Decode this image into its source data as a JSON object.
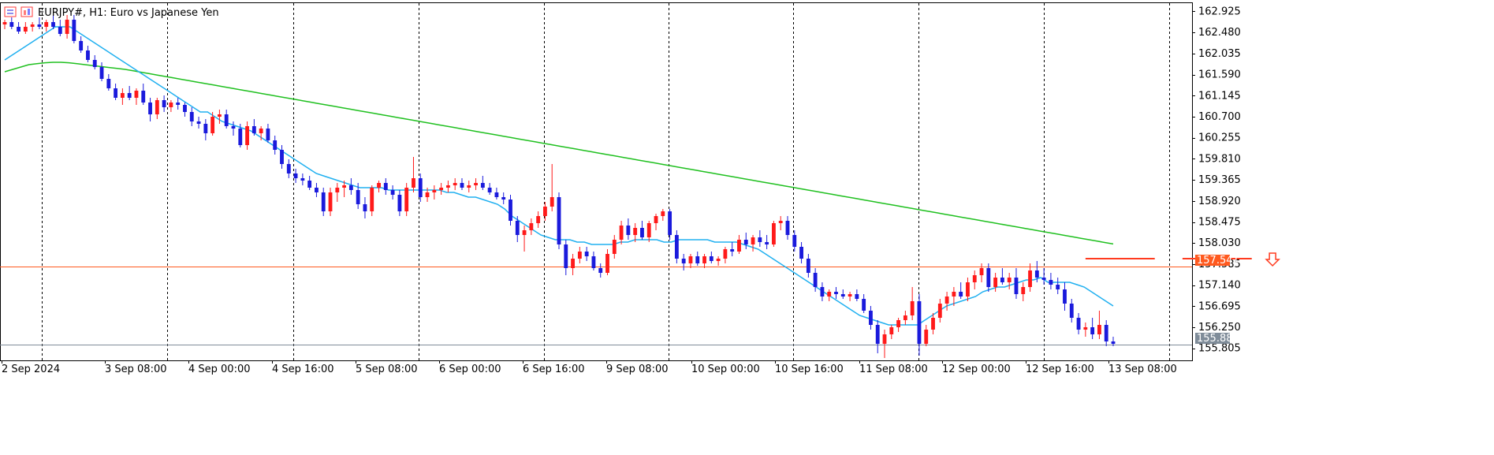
{
  "header": {
    "symbol_title": "EURJPY#, H1:  Euro vs Japanese Yen"
  },
  "chart_data": {
    "type": "candlestick",
    "timeframe": "H1",
    "ylim": [
      155.55,
      163.1
    ],
    "y_ticks": [
      "162.925",
      "162.480",
      "162.035",
      "161.590",
      "161.145",
      "160.700",
      "160.255",
      "159.810",
      "159.365",
      "158.920",
      "158.475",
      "158.030",
      "157.585",
      "157.140",
      "156.695",
      "156.250",
      "155.805"
    ],
    "x_ticks": [
      "2 Sep 2024",
      "3 Sep 08:00",
      "4 Sep 00:00",
      "4 Sep 16:00",
      "5 Sep 08:00",
      "6 Sep 00:00",
      "6 Sep 16:00",
      "9 Sep 08:00",
      "10 Sep 00:00",
      "10 Sep 16:00",
      "11 Sep 08:00",
      "12 Sep 00:00",
      "12 Sep 16:00",
      "13 Sep 08:00"
    ],
    "horizontal_lines": [
      {
        "name": "resistance",
        "value": 157.541,
        "label": "157.541",
        "color": "#ff5a1f"
      },
      {
        "name": "bid",
        "value": 155.882,
        "label": "155.882",
        "color": "#7f8c99"
      }
    ],
    "pattern_marks": [
      {
        "value": 157.6,
        "from_index": 156,
        "to_index": 166
      },
      {
        "value": 157.6,
        "from_index": 170,
        "to_index": 180
      }
    ],
    "down_arrow": {
      "index": 183,
      "value": 157.65
    },
    "colors": {
      "bull": "#ff1a1a",
      "bear": "#1a1adc",
      "ma_fast": "#20b0f0",
      "ma_slow": "#20c020",
      "grid": "#000000"
    },
    "ma_fast": [
      161.9,
      162.0,
      162.1,
      162.2,
      162.3,
      162.4,
      162.5,
      162.6,
      162.6,
      162.6,
      162.5,
      162.4,
      162.3,
      162.2,
      162.1,
      162.0,
      161.9,
      161.8,
      161.7,
      161.6,
      161.5,
      161.4,
      161.3,
      161.2,
      161.1,
      161.0,
      160.9,
      160.8,
      160.8,
      160.7,
      160.6,
      160.55,
      160.5,
      160.45,
      160.4,
      160.3,
      160.2,
      160.1,
      160.0,
      159.9,
      159.8,
      159.7,
      159.6,
      159.5,
      159.45,
      159.4,
      159.35,
      159.3,
      159.25,
      159.2,
      159.2,
      159.2,
      159.2,
      159.15,
      159.15,
      159.15,
      159.15,
      159.15,
      159.15,
      159.15,
      159.15,
      159.1,
      159.1,
      159.05,
      159.0,
      159.0,
      158.95,
      158.9,
      158.85,
      158.75,
      158.6,
      158.5,
      158.4,
      158.3,
      158.2,
      158.15,
      158.1,
      158.1,
      158.1,
      158.05,
      158.05,
      158.0,
      158.0,
      158.0,
      158.0,
      158.05,
      158.05,
      158.1,
      158.1,
      158.1,
      158.1,
      158.05,
      158.05,
      158.1,
      158.1,
      158.1,
      158.1,
      158.1,
      158.05,
      158.05,
      158.05,
      158.05,
      158.0,
      157.95,
      157.9,
      157.8,
      157.7,
      157.6,
      157.5,
      157.4,
      157.3,
      157.2,
      157.1,
      157.0,
      156.9,
      156.8,
      156.7,
      156.6,
      156.5,
      156.45,
      156.4,
      156.35,
      156.3,
      156.3,
      156.3,
      156.3,
      156.3,
      156.4,
      156.5,
      156.6,
      156.7,
      156.75,
      156.8,
      156.85,
      156.9,
      157.0,
      157.05,
      157.1,
      157.1,
      157.15,
      157.2,
      157.25,
      157.25,
      157.3,
      157.2,
      157.2,
      157.2,
      157.2,
      157.15,
      157.1,
      157.0,
      156.9,
      156.8,
      156.7
    ],
    "ma_slow": [
      161.65,
      161.7,
      161.75,
      161.8,
      161.82,
      161.84,
      161.85,
      161.85,
      161.84,
      161.82,
      161.8,
      161.78,
      161.76,
      161.74,
      161.72,
      161.7,
      161.67,
      161.64,
      161.61,
      161.58,
      161.55,
      161.52,
      161.49,
      161.46,
      161.43,
      161.4,
      161.37,
      161.34,
      161.31,
      161.28,
      161.25,
      161.22,
      161.19,
      161.16,
      161.13,
      161.1,
      161.07,
      161.04,
      161.01,
      160.98,
      160.95,
      160.92,
      160.89,
      160.86,
      160.83,
      160.8,
      160.77,
      160.74,
      160.71,
      160.68,
      160.65,
      160.62,
      160.59,
      160.56,
      160.53,
      160.5,
      160.47,
      160.44,
      160.41,
      160.38,
      160.35,
      160.32,
      160.29,
      160.26,
      160.23,
      160.2,
      160.17,
      160.14,
      160.11,
      160.08,
      160.05,
      160.02,
      159.99,
      159.96,
      159.93,
      159.9,
      159.87,
      159.84,
      159.81,
      159.78,
      159.75,
      159.72,
      159.69,
      159.66,
      159.63,
      159.6,
      159.57,
      159.54,
      159.51,
      159.48,
      159.45,
      159.42,
      159.39,
      159.36,
      159.33,
      159.3,
      159.27,
      159.24,
      159.21,
      159.18,
      159.15,
      159.12,
      159.09,
      159.06,
      159.03,
      159.0,
      158.97,
      158.94,
      158.91,
      158.88,
      158.85,
      158.82,
      158.79,
      158.76,
      158.73,
      158.7,
      158.67,
      158.64,
      158.61,
      158.58,
      158.55,
      158.52,
      158.49,
      158.46,
      158.43,
      158.4,
      158.37,
      158.34,
      158.31,
      158.28,
      158.25,
      158.22,
      158.19,
      158.16,
      158.13,
      158.1,
      158.07,
      158.04,
      158.01
    ],
    "candles": [
      [
        162.65,
        162.75,
        162.55,
        162.7
      ],
      [
        162.7,
        162.8,
        162.55,
        162.6
      ],
      [
        162.6,
        162.7,
        162.45,
        162.5
      ],
      [
        162.5,
        162.7,
        162.45,
        162.6
      ],
      [
        162.6,
        162.7,
        162.5,
        162.65
      ],
      [
        162.65,
        162.8,
        162.55,
        162.6
      ],
      [
        162.6,
        162.75,
        162.5,
        162.7
      ],
      [
        162.7,
        162.85,
        162.55,
        162.6
      ],
      [
        162.6,
        162.75,
        162.4,
        162.45
      ],
      [
        162.45,
        162.85,
        162.35,
        162.75
      ],
      [
        162.75,
        162.85,
        162.25,
        162.3
      ],
      [
        162.3,
        162.4,
        162.05,
        162.1
      ],
      [
        162.1,
        162.2,
        161.85,
        161.9
      ],
      [
        161.9,
        162.0,
        161.7,
        161.75
      ],
      [
        161.75,
        161.85,
        161.45,
        161.5
      ],
      [
        161.5,
        161.6,
        161.25,
        161.3
      ],
      [
        161.3,
        161.4,
        161.05,
        161.1
      ],
      [
        161.1,
        161.3,
        160.95,
        161.2
      ],
      [
        161.2,
        161.35,
        161.05,
        161.1
      ],
      [
        161.1,
        161.3,
        160.95,
        161.25
      ],
      [
        161.25,
        161.4,
        160.95,
        161.0
      ],
      [
        161.0,
        161.1,
        160.6,
        160.75
      ],
      [
        160.75,
        161.1,
        160.65,
        161.05
      ],
      [
        161.05,
        161.15,
        160.8,
        160.9
      ],
      [
        160.9,
        161.05,
        160.8,
        161.0
      ],
      [
        161.0,
        161.1,
        160.85,
        160.95
      ],
      [
        160.95,
        161.0,
        160.7,
        160.8
      ],
      [
        160.8,
        160.9,
        160.5,
        160.6
      ],
      [
        160.6,
        160.7,
        160.45,
        160.55
      ],
      [
        160.55,
        160.65,
        160.2,
        160.35
      ],
      [
        160.35,
        160.8,
        160.3,
        160.7
      ],
      [
        160.7,
        160.85,
        160.55,
        160.75
      ],
      [
        160.75,
        160.85,
        160.45,
        160.5
      ],
      [
        160.5,
        160.6,
        160.3,
        160.45
      ],
      [
        160.45,
        160.55,
        160.05,
        160.1
      ],
      [
        160.1,
        160.6,
        160.0,
        160.5
      ],
      [
        160.5,
        160.65,
        160.3,
        160.35
      ],
      [
        160.35,
        160.5,
        160.2,
        160.45
      ],
      [
        160.45,
        160.55,
        160.15,
        160.2
      ],
      [
        160.2,
        160.3,
        159.9,
        160.0
      ],
      [
        160.0,
        160.1,
        159.6,
        159.7
      ],
      [
        159.7,
        159.8,
        159.4,
        159.5
      ],
      [
        159.5,
        159.6,
        159.3,
        159.4
      ],
      [
        159.4,
        159.5,
        159.25,
        159.35
      ],
      [
        159.35,
        159.45,
        159.15,
        159.2
      ],
      [
        159.2,
        159.3,
        159.0,
        159.1
      ],
      [
        159.1,
        159.2,
        158.6,
        158.7
      ],
      [
        158.7,
        159.2,
        158.6,
        159.1
      ],
      [
        159.1,
        159.3,
        158.9,
        159.2
      ],
      [
        159.2,
        159.35,
        159.0,
        159.25
      ],
      [
        159.25,
        159.4,
        159.05,
        159.15
      ],
      [
        159.15,
        159.3,
        158.75,
        158.85
      ],
      [
        158.85,
        159.0,
        158.55,
        158.7
      ],
      [
        158.7,
        159.25,
        158.6,
        159.2
      ],
      [
        159.2,
        159.35,
        159.1,
        159.3
      ],
      [
        159.3,
        159.4,
        159.05,
        159.15
      ],
      [
        159.15,
        159.25,
        158.95,
        159.05
      ],
      [
        159.05,
        159.15,
        158.6,
        158.7
      ],
      [
        158.7,
        159.3,
        158.6,
        159.2
      ],
      [
        159.2,
        159.85,
        159.1,
        159.4
      ],
      [
        159.4,
        159.5,
        158.9,
        159.0
      ],
      [
        159.0,
        159.2,
        158.9,
        159.1
      ],
      [
        159.1,
        159.25,
        158.95,
        159.15
      ],
      [
        159.15,
        159.3,
        159.05,
        159.2
      ],
      [
        159.2,
        159.35,
        159.1,
        159.25
      ],
      [
        159.25,
        159.4,
        159.15,
        159.3
      ],
      [
        159.3,
        159.4,
        159.15,
        159.2
      ],
      [
        159.2,
        159.35,
        159.1,
        159.25
      ],
      [
        159.25,
        159.4,
        159.15,
        159.3
      ],
      [
        159.3,
        159.45,
        159.15,
        159.2
      ],
      [
        159.2,
        159.3,
        159.05,
        159.1
      ],
      [
        159.1,
        159.2,
        158.95,
        159.0
      ],
      [
        159.0,
        159.1,
        158.85,
        158.95
      ],
      [
        158.95,
        159.05,
        158.4,
        158.5
      ],
      [
        158.5,
        158.6,
        158.05,
        158.2
      ],
      [
        158.2,
        158.4,
        157.85,
        158.3
      ],
      [
        158.3,
        158.55,
        158.2,
        158.45
      ],
      [
        158.45,
        158.7,
        158.35,
        158.6
      ],
      [
        158.6,
        158.9,
        158.5,
        158.8
      ],
      [
        158.8,
        159.7,
        158.7,
        159.0
      ],
      [
        159.0,
        159.1,
        157.9,
        158.0
      ],
      [
        158.0,
        158.1,
        157.35,
        157.5
      ],
      [
        157.5,
        157.8,
        157.35,
        157.7
      ],
      [
        157.7,
        157.95,
        157.6,
        157.85
      ],
      [
        157.85,
        157.95,
        157.65,
        157.75
      ],
      [
        157.75,
        157.85,
        157.45,
        157.5
      ],
      [
        157.5,
        157.6,
        157.3,
        157.4
      ],
      [
        157.4,
        157.9,
        157.35,
        157.8
      ],
      [
        157.8,
        158.2,
        157.7,
        158.1
      ],
      [
        158.1,
        158.5,
        158.0,
        158.4
      ],
      [
        158.4,
        158.55,
        158.1,
        158.2
      ],
      [
        158.2,
        158.45,
        158.05,
        158.35
      ],
      [
        158.35,
        158.5,
        158.1,
        158.15
      ],
      [
        158.15,
        158.5,
        158.05,
        158.45
      ],
      [
        158.45,
        158.65,
        158.3,
        158.6
      ],
      [
        158.6,
        158.75,
        158.5,
        158.7
      ],
      [
        158.7,
        158.75,
        158.1,
        158.2
      ],
      [
        158.2,
        158.3,
        157.6,
        157.7
      ],
      [
        157.7,
        157.8,
        157.45,
        157.6
      ],
      [
        157.6,
        157.8,
        157.5,
        157.75
      ],
      [
        157.75,
        157.85,
        157.55,
        157.6
      ],
      [
        157.6,
        157.8,
        157.5,
        157.75
      ],
      [
        157.75,
        157.85,
        157.6,
        157.65
      ],
      [
        157.65,
        157.75,
        157.55,
        157.7
      ],
      [
        157.7,
        157.95,
        157.6,
        157.9
      ],
      [
        157.9,
        158.05,
        157.75,
        157.85
      ],
      [
        157.85,
        158.2,
        157.8,
        158.1
      ],
      [
        158.1,
        158.25,
        157.9,
        158.0
      ],
      [
        158.0,
        158.2,
        157.85,
        158.15
      ],
      [
        158.15,
        158.3,
        157.95,
        158.05
      ],
      [
        158.05,
        158.2,
        157.9,
        158.0
      ],
      [
        158.0,
        158.5,
        157.95,
        158.45
      ],
      [
        158.45,
        158.6,
        158.3,
        158.5
      ],
      [
        158.5,
        158.6,
        158.1,
        158.2
      ],
      [
        158.2,
        158.3,
        157.85,
        157.95
      ],
      [
        157.95,
        158.05,
        157.6,
        157.7
      ],
      [
        157.7,
        157.8,
        157.3,
        157.4
      ],
      [
        157.4,
        157.5,
        157.0,
        157.1
      ],
      [
        157.1,
        157.2,
        156.8,
        156.9
      ],
      [
        156.9,
        157.05,
        156.8,
        157.0
      ],
      [
        157.0,
        157.1,
        156.85,
        156.95
      ],
      [
        156.95,
        157.05,
        156.85,
        156.9
      ],
      [
        156.9,
        157.0,
        156.8,
        156.95
      ],
      [
        156.95,
        157.05,
        156.8,
        156.85
      ],
      [
        156.85,
        156.95,
        156.55,
        156.6
      ],
      [
        156.6,
        156.7,
        156.2,
        156.3
      ],
      [
        156.3,
        156.4,
        155.7,
        155.9
      ],
      [
        155.9,
        156.2,
        155.6,
        156.1
      ],
      [
        156.1,
        156.3,
        156.0,
        156.25
      ],
      [
        156.25,
        156.45,
        156.15,
        156.4
      ],
      [
        156.4,
        156.6,
        156.3,
        156.5
      ],
      [
        156.5,
        157.1,
        156.4,
        156.8
      ],
      [
        156.8,
        156.95,
        155.65,
        155.9
      ],
      [
        155.9,
        156.3,
        155.85,
        156.2
      ],
      [
        156.2,
        156.55,
        156.1,
        156.45
      ],
      [
        156.45,
        156.85,
        156.35,
        156.75
      ],
      [
        156.75,
        157.0,
        156.6,
        156.9
      ],
      [
        156.9,
        157.1,
        156.7,
        157.0
      ],
      [
        157.0,
        157.2,
        156.85,
        156.9
      ],
      [
        156.9,
        157.3,
        156.8,
        157.2
      ],
      [
        157.2,
        157.45,
        157.05,
        157.35
      ],
      [
        157.35,
        157.6,
        157.2,
        157.5
      ],
      [
        157.5,
        157.6,
        157.0,
        157.1
      ],
      [
        157.1,
        157.4,
        157.0,
        157.3
      ],
      [
        157.3,
        157.5,
        157.15,
        157.2
      ],
      [
        157.2,
        157.4,
        157.05,
        157.3
      ],
      [
        157.3,
        157.5,
        156.85,
        156.95
      ],
      [
        156.95,
        157.2,
        156.8,
        157.1
      ],
      [
        157.1,
        157.6,
        157.0,
        157.45
      ],
      [
        157.45,
        157.65,
        157.2,
        157.3
      ],
      [
        157.3,
        157.5,
        157.15,
        157.25
      ],
      [
        157.25,
        157.4,
        157.05,
        157.15
      ],
      [
        157.15,
        157.3,
        156.95,
        157.05
      ],
      [
        157.05,
        157.2,
        156.6,
        156.75
      ],
      [
        156.75,
        156.85,
        156.35,
        156.45
      ],
      [
        156.45,
        156.55,
        156.1,
        156.2
      ],
      [
        156.2,
        156.35,
        156.05,
        156.25
      ],
      [
        156.25,
        156.45,
        156.0,
        156.1
      ],
      [
        156.1,
        156.6,
        156.0,
        156.3
      ],
      [
        156.3,
        156.4,
        155.85,
        155.95
      ],
      [
        155.95,
        156.05,
        155.85,
        155.9
      ]
    ]
  },
  "annotations": {
    "resistance_label": "157.541",
    "bid_label": "155.882"
  }
}
